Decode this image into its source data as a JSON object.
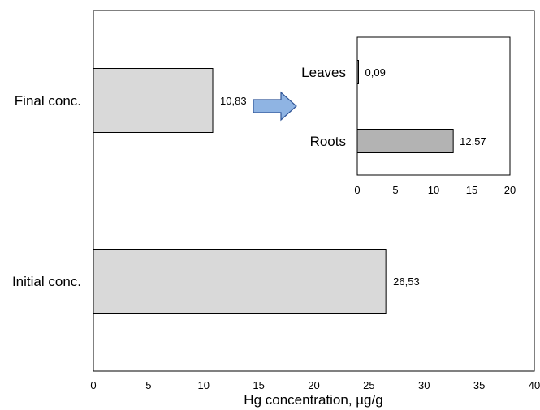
{
  "chart_data": [
    {
      "type": "bar",
      "orientation": "horizontal",
      "categories": [
        "Final conc.",
        "Initial conc."
      ],
      "values": [
        10.83,
        26.53
      ],
      "data_labels": [
        "10,83",
        "26,53"
      ],
      "xlabel": "Hg concentration, µg/g",
      "xlim": [
        0,
        40
      ],
      "xticks": [
        "0",
        "5",
        "10",
        "15",
        "20",
        "25",
        "30",
        "35",
        "40"
      ],
      "grid": false,
      "bar_color": "#d9d9d9"
    },
    {
      "type": "bar",
      "orientation": "horizontal",
      "inset": true,
      "categories": [
        "Leaves",
        "Roots"
      ],
      "values": [
        0.09,
        12.57
      ],
      "data_labels": [
        "0,09",
        "12,57"
      ],
      "xlim": [
        0,
        20
      ],
      "xticks": [
        "0",
        "5",
        "10",
        "15",
        "20"
      ],
      "grid": false,
      "bar_color": "#b3b3b3"
    }
  ],
  "colors": {
    "main_bar": "#d9d9d9",
    "inset_bar": "#b3b3b3",
    "arrow_fill": "#8fb4e3",
    "arrow_stroke": "#2f5597"
  },
  "icons": {
    "arrow": "right-arrow-icon"
  }
}
